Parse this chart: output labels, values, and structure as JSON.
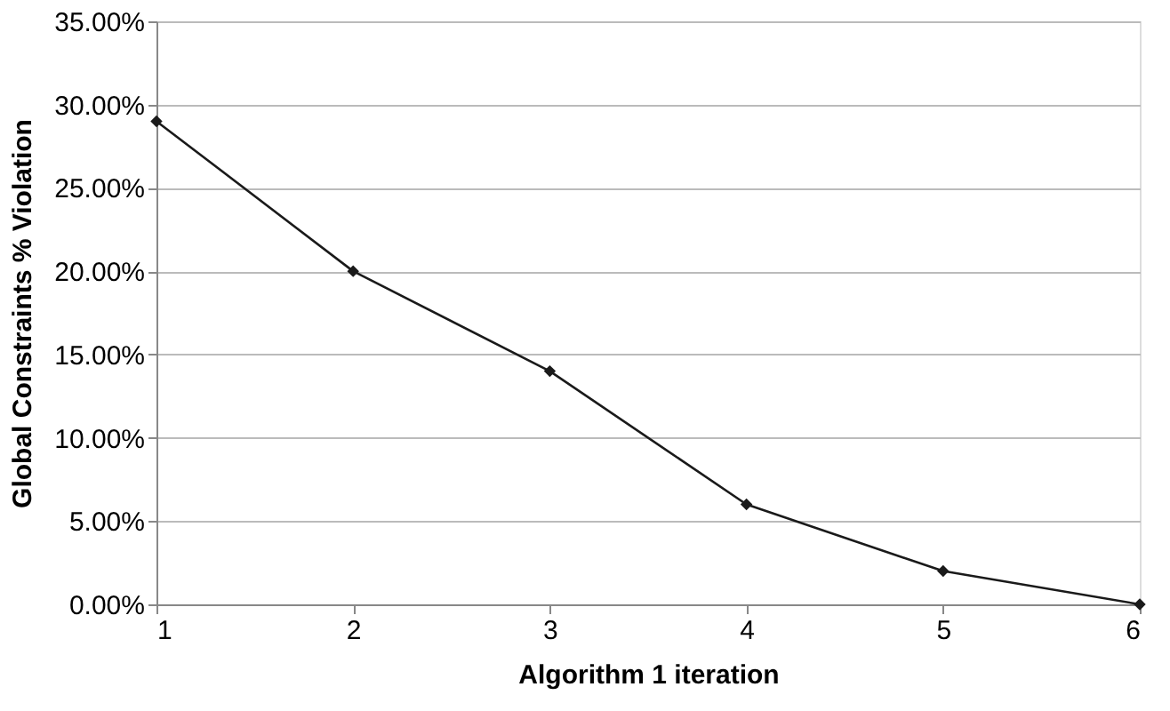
{
  "chart_data": {
    "type": "line",
    "xlabel": "Algorithm 1 iteration",
    "ylabel": "Global Constraints % Violation",
    "x": [
      1,
      2,
      3,
      4,
      5,
      6
    ],
    "series": [
      {
        "color": "#1a1a1a",
        "values": [
          29,
          20,
          14,
          6,
          2,
          0
        ]
      }
    ],
    "xlim": [
      1,
      6
    ],
    "xticks": [
      1,
      2,
      3,
      4,
      5,
      6
    ],
    "ylim": [
      0,
      35
    ],
    "yticks": [
      {
        "value": 0,
        "label": "0.00%"
      },
      {
        "value": 5,
        "label": "5.00%"
      },
      {
        "value": 10,
        "label": "10.00%"
      },
      {
        "value": 15,
        "label": "15.00%"
      },
      {
        "value": 20,
        "label": "20.00%"
      },
      {
        "value": 25,
        "label": "25.00%"
      },
      {
        "value": 30,
        "label": "30.00%"
      },
      {
        "value": 35,
        "label": "35.00%"
      }
    ],
    "grid": "y",
    "marker": "diamond",
    "line_style": "solid"
  }
}
